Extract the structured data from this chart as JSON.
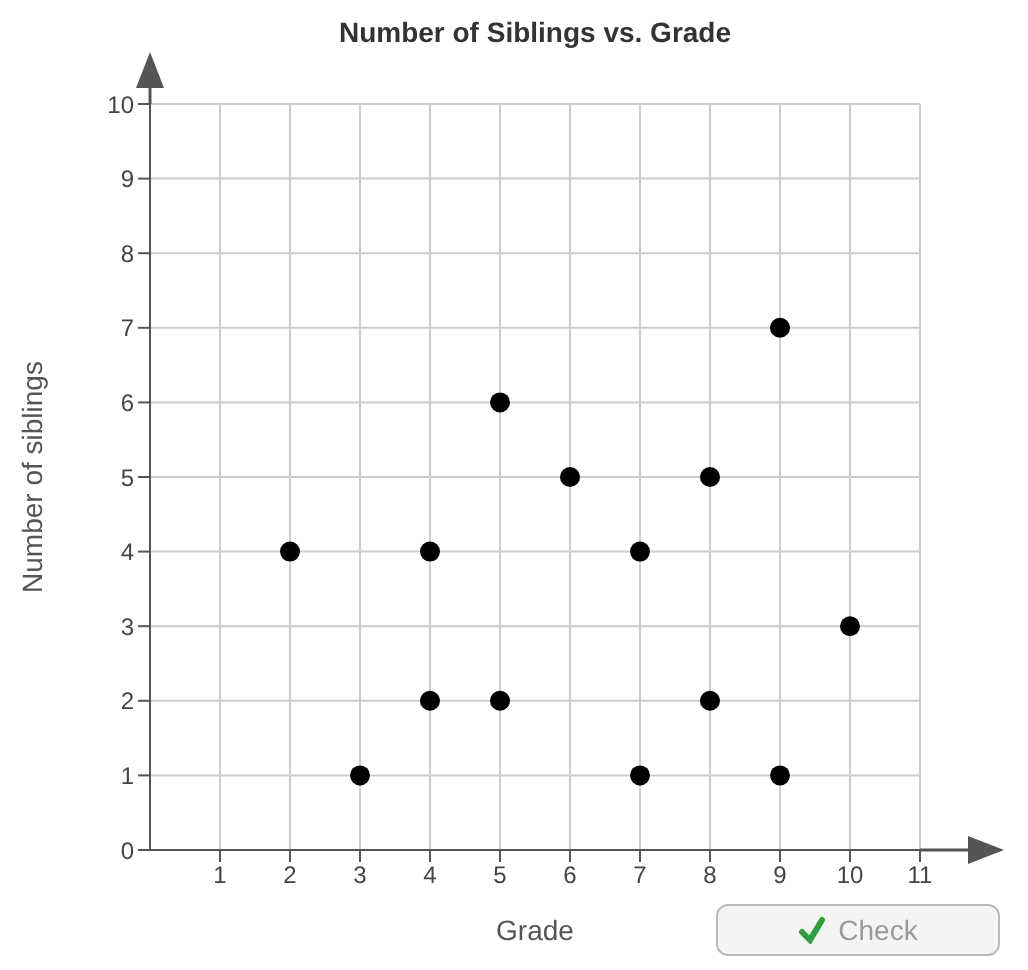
{
  "chart_data": {
    "type": "scatter",
    "title": "Number of Siblings vs. Grade",
    "xlabel": "Grade",
    "ylabel": "Number of siblings",
    "x": [
      2,
      3,
      4,
      4,
      5,
      5,
      6,
      7,
      7,
      8,
      8,
      9,
      9,
      10
    ],
    "values": [
      4,
      1,
      4,
      2,
      6,
      2,
      5,
      4,
      1,
      5,
      2,
      7,
      1,
      3
    ],
    "color": "#000000",
    "marker": "circle",
    "xlim": [
      0,
      11
    ],
    "xticks": [
      1,
      2,
      3,
      4,
      5,
      6,
      7,
      8,
      9,
      10,
      11
    ],
    "ylim": [
      0,
      10
    ],
    "yticks": [
      0,
      1,
      2,
      3,
      4,
      5,
      6,
      7,
      8,
      9,
      10
    ],
    "grid": true,
    "annotations": [
      "Check"
    ]
  }
}
